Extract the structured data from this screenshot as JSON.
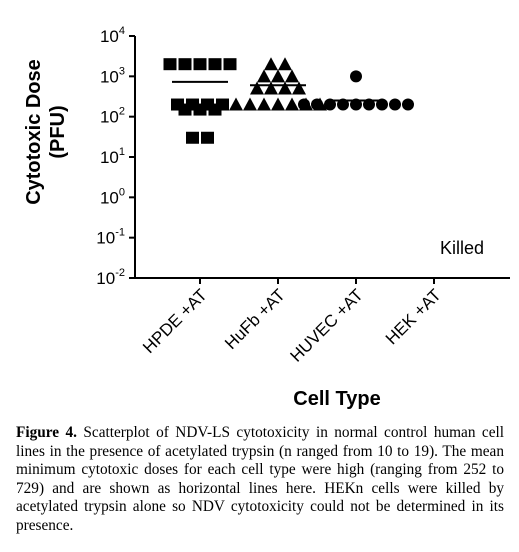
{
  "chart_data": {
    "type": "scatter",
    "xlabel": "Cell Type",
    "ylabel_lines": [
      "Cytotoxic Dose",
      "(PFU)"
    ],
    "yscale": "log",
    "ylim": [
      0.01,
      10000
    ],
    "ytick_labels": [
      {
        "base": "10",
        "exp": "4",
        "value": 10000
      },
      {
        "base": "10",
        "exp": "3",
        "value": 1000
      },
      {
        "base": "10",
        "exp": "2",
        "value": 100
      },
      {
        "base": "10",
        "exp": "1",
        "value": 10
      },
      {
        "base": "10",
        "exp": "0",
        "value": 1
      },
      {
        "base": "10",
        "exp": "-1",
        "value": 0.1
      },
      {
        "base": "10",
        "exp": "-2",
        "value": 0.01
      }
    ],
    "categories": [
      "HPDE +AT",
      "HuFb +AT",
      "HUVEC +AT",
      "HEK +AT"
    ],
    "series": [
      {
        "category": "HPDE +AT",
        "marker": "square",
        "mean": 729,
        "points": [
          2000,
          2000,
          2000,
          2000,
          2000,
          200,
          200,
          200,
          200,
          150,
          150,
          150,
          30,
          30
        ]
      },
      {
        "category": "HuFb +AT",
        "marker": "triangle",
        "mean": 600,
        "points": [
          2000,
          2000,
          1000,
          1000,
          1000,
          500,
          500,
          500,
          500,
          200,
          200,
          200,
          200,
          200,
          200,
          200
        ]
      },
      {
        "category": "HUVEC +AT",
        "marker": "circle",
        "mean": 252,
        "points": [
          1000,
          200,
          200,
          200,
          200,
          200,
          200,
          200,
          200,
          200
        ]
      }
    ],
    "annotations": [
      "Killed"
    ],
    "grid": false
  },
  "caption": {
    "label": "Figure 4.",
    "text": " Scatterplot of NDV-LS cytotoxicity in normal control human cell lines in the presence of acetylated trypsin (n ranged from 10 to 19). The mean minimum cytotoxic doses for each cell type were high (ranging from 252 to 729) and are shown as horizontal lines here. HEKn cells were killed by acetylated trypsin alone so NDV cytotoxicity could not be determined in its presence."
  }
}
